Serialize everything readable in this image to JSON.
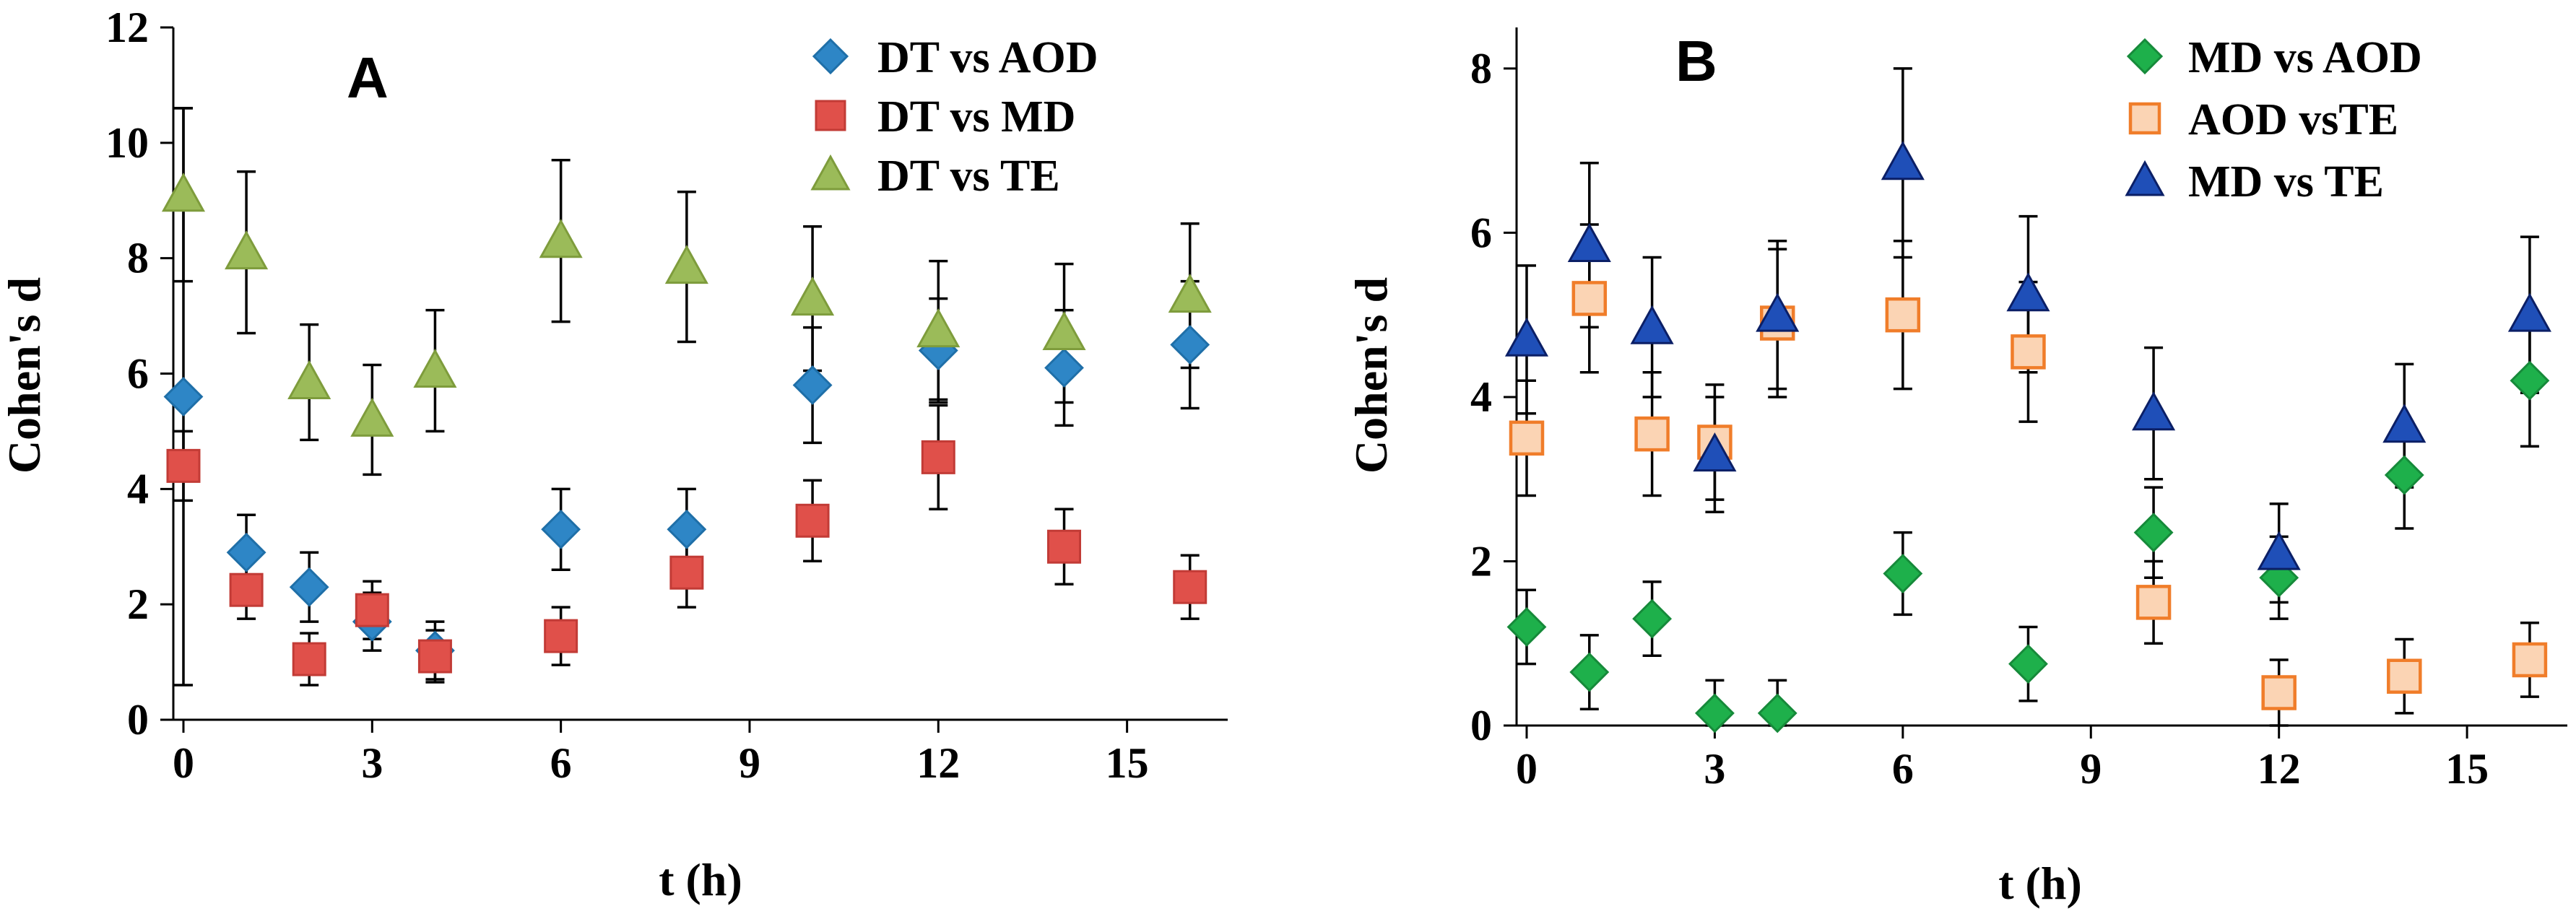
{
  "chart_data": [
    {
      "type": "scatter",
      "panel_label": "A",
      "xlabel": "t (h)",
      "ylabel": "Cohen's d",
      "xlim": [
        0,
        16
      ],
      "ylim": [
        0,
        12
      ],
      "xticks": [
        0,
        3,
        6,
        9,
        12,
        15
      ],
      "yticks": [
        0,
        2,
        4,
        6,
        8,
        10,
        12
      ],
      "xtick_labels": [
        "0",
        "3",
        "6",
        "9",
        "12",
        "15"
      ],
      "ytick_labels": [
        "0",
        "2",
        "4",
        "6",
        "8",
        "10",
        "12"
      ],
      "legend_position": "top-right",
      "series": [
        {
          "name": "DT vs AOD",
          "marker": "diamond",
          "color": "#2E86C6",
          "edge": "#1F6FA8",
          "x": [
            0,
            1,
            2,
            3,
            4,
            6,
            8,
            10,
            12,
            14,
            16
          ],
          "y": [
            5.6,
            2.9,
            2.3,
            1.7,
            1.2,
            3.3,
            3.3,
            5.8,
            6.4,
            6.1,
            6.5
          ],
          "err": [
            5.0,
            0.65,
            0.6,
            0.5,
            0.5,
            0.7,
            0.7,
            1.0,
            0.9,
            1.0,
            1.1
          ]
        },
        {
          "name": "DT vs MD",
          "marker": "square",
          "color": "#E0504A",
          "edge": "#C23B36",
          "x": [
            0,
            1,
            2,
            3,
            4,
            6,
            8,
            10,
            12,
            14,
            16
          ],
          "y": [
            4.4,
            2.25,
            1.05,
            1.9,
            1.1,
            1.45,
            2.55,
            3.45,
            4.55,
            3.0,
            2.3
          ],
          "err": [
            0.6,
            0.5,
            0.45,
            0.5,
            0.45,
            0.5,
            0.6,
            0.7,
            0.9,
            0.65,
            0.55
          ]
        },
        {
          "name": "DT vs TE",
          "marker": "triangle",
          "color": "#9BBB59",
          "edge": "#7E9C3C",
          "x": [
            0,
            1,
            2,
            3,
            4,
            6,
            8,
            10,
            12,
            14,
            16
          ],
          "y": [
            9.1,
            8.1,
            5.85,
            5.2,
            6.05,
            8.3,
            7.85,
            7.3,
            6.75,
            6.7,
            7.35
          ],
          "err": [
            1.5,
            1.4,
            1.0,
            0.95,
            1.05,
            1.4,
            1.3,
            1.25,
            1.2,
            1.2,
            1.25
          ]
        }
      ]
    },
    {
      "type": "scatter",
      "panel_label": "B",
      "xlabel": "t (h)",
      "ylabel": "Cohen's d",
      "xlim": [
        0,
        16
      ],
      "ylim": [
        0,
        8.5
      ],
      "xticks": [
        0,
        3,
        6,
        9,
        12,
        15
      ],
      "yticks": [
        0,
        2,
        4,
        6,
        8
      ],
      "xtick_labels": [
        "0",
        "3",
        "6",
        "9",
        "12",
        "15"
      ],
      "ytick_labels": [
        "0",
        "2",
        "4",
        "6",
        "8"
      ],
      "legend_position": "top-right",
      "series": [
        {
          "name": "MD vs AOD",
          "marker": "diamond",
          "color": "#1EB04B",
          "edge": "#168A3A",
          "x": [
            0,
            1,
            2,
            3,
            4,
            6,
            8,
            10,
            12,
            14,
            16
          ],
          "y": [
            1.2,
            0.65,
            1.3,
            0.15,
            0.15,
            1.85,
            0.75,
            2.35,
            1.8,
            3.05,
            4.2
          ],
          "err": [
            0.45,
            0.45,
            0.45,
            0.4,
            0.4,
            0.5,
            0.45,
            0.55,
            0.5,
            0.65,
            0.8
          ]
        },
        {
          "name": "AOD vsTE",
          "marker": "square-open",
          "color": "#FBD4B4",
          "edge": "#F07D2A",
          "x": [
            0,
            1,
            2,
            3,
            4,
            6,
            8,
            10,
            12,
            14,
            16
          ],
          "y": [
            3.5,
            5.2,
            3.55,
            3.45,
            4.9,
            5.0,
            4.55,
            1.5,
            0.4,
            0.6,
            0.8
          ],
          "err": [
            0.7,
            0.9,
            0.75,
            0.7,
            0.9,
            0.9,
            0.85,
            0.5,
            0.4,
            0.45,
            0.45
          ]
        },
        {
          "name": "MD vs TE",
          "marker": "triangle",
          "color": "#1F4FB8",
          "edge": "#0B1F66",
          "x": [
            0,
            1,
            2,
            3,
            4,
            6,
            8,
            10,
            12,
            14,
            16
          ],
          "y": [
            4.7,
            5.85,
            4.85,
            3.3,
            5.0,
            6.85,
            5.25,
            3.8,
            2.1,
            3.65,
            5.0
          ],
          "err": [
            0.9,
            1.0,
            0.85,
            0.7,
            0.9,
            1.15,
            0.95,
            0.8,
            0.6,
            0.75,
            0.95
          ]
        }
      ]
    }
  ]
}
